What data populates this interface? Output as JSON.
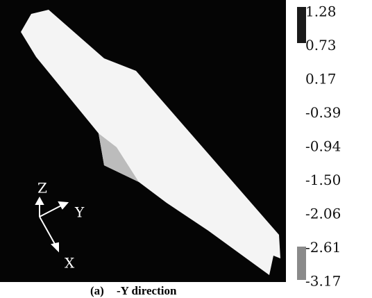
{
  "colorbar": {
    "labels": [
      "1.28",
      "0.73",
      "0.17",
      "-0.39",
      "-0.94",
      "-1.50",
      "-2.06",
      "-2.61",
      "-3.17"
    ]
  },
  "axes": {
    "z": "Z",
    "y": "Y",
    "x": "X"
  },
  "caption": {
    "label": "(a)",
    "text": "-Y direction"
  }
}
